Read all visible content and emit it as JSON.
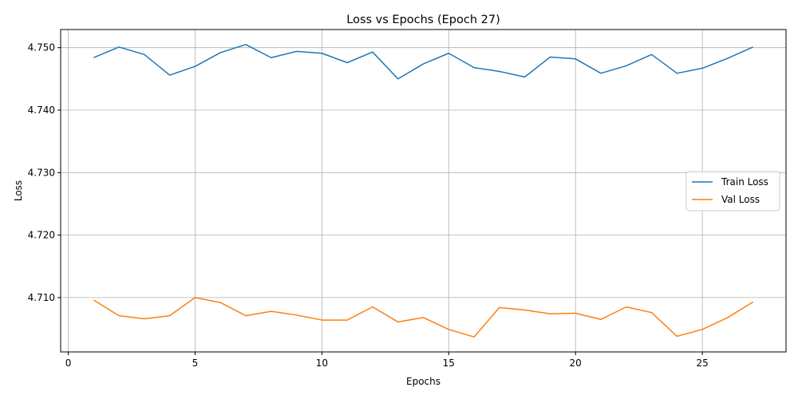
{
  "chart_data": {
    "type": "line",
    "title": "Loss vs Epochs (Epoch 27)",
    "xlabel": "Epochs",
    "ylabel": "Loss",
    "xlim": [
      -0.3,
      28.3
    ],
    "ylim": [
      4.7013,
      4.7529
    ],
    "xticks": [
      0,
      5,
      10,
      15,
      20,
      25
    ],
    "xtick_labels": [
      "0",
      "5",
      "10",
      "15",
      "20",
      "25"
    ],
    "yticks": [
      4.71,
      4.72,
      4.73,
      4.74,
      4.75
    ],
    "ytick_labels": [
      "4.710",
      "4.720",
      "4.730",
      "4.740",
      "4.750"
    ],
    "grid": true,
    "legend_position": "center-right",
    "x": [
      1,
      2,
      3,
      4,
      5,
      6,
      7,
      8,
      9,
      10,
      11,
      12,
      13,
      14,
      15,
      16,
      17,
      18,
      19,
      20,
      21,
      22,
      23,
      24,
      25,
      26,
      27
    ],
    "series": [
      {
        "name": "Train Loss",
        "color": "#1f77b4",
        "values": [
          4.7484,
          4.7501,
          4.7489,
          4.7456,
          4.747,
          4.7492,
          4.7505,
          4.7484,
          4.7494,
          4.7491,
          4.7476,
          4.7493,
          4.745,
          4.7474,
          4.7491,
          4.7468,
          4.7462,
          4.7453,
          4.7485,
          4.7482,
          4.7459,
          4.7471,
          4.7489,
          4.7459,
          4.7467,
          4.7483,
          4.7501
        ]
      },
      {
        "name": "Val Loss",
        "color": "#ff7f0e",
        "values": [
          4.7096,
          4.7071,
          4.7066,
          4.7071,
          4.71,
          4.7092,
          4.7071,
          4.7078,
          4.7072,
          4.7064,
          4.7064,
          4.7085,
          4.7061,
          4.7068,
          4.7049,
          4.7037,
          4.7084,
          4.708,
          4.7074,
          4.7075,
          4.7065,
          4.7085,
          4.7076,
          4.7038,
          4.7049,
          4.7068,
          4.7093
        ]
      }
    ]
  }
}
